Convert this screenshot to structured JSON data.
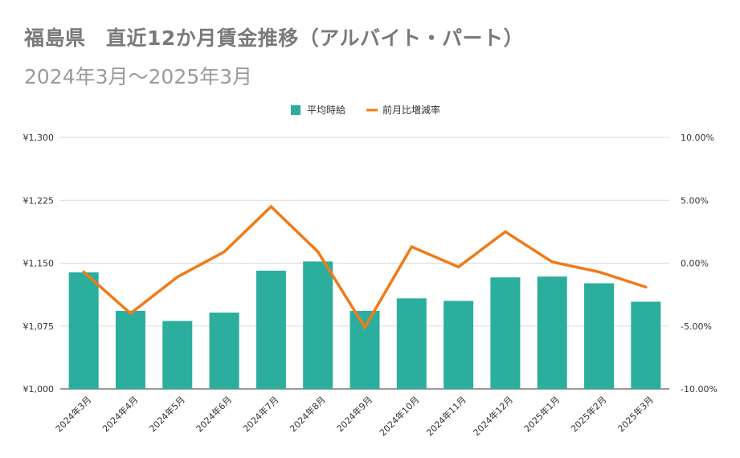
{
  "title": "福島県　直近12か月賃金推移（アルバイト・パート）",
  "subtitle": "2024年3月～2025年3月",
  "chart_data": {
    "type": "bar+line",
    "categories": [
      "2024年3月",
      "2024年4月",
      "2024年5月",
      "2024年6月",
      "2024年7月",
      "2024年8月",
      "2024年9月",
      "2024年10月",
      "2024年11月",
      "2024年12月",
      "2025年1月",
      "2025年2月",
      "2025年3月"
    ],
    "series": [
      {
        "name": "平均時給",
        "type": "bar",
        "axis": "left",
        "color": "#2bae9e",
        "values": [
          1139,
          1093,
          1081,
          1091,
          1141,
          1152,
          1093,
          1108,
          1105,
          1133,
          1134,
          1126,
          1104
        ]
      },
      {
        "name": "前月比増減率",
        "type": "line",
        "axis": "right",
        "color": "#f07b17",
        "values": [
          -0.7,
          -4.0,
          -1.1,
          0.9,
          4.5,
          0.9,
          -5.1,
          1.3,
          -0.3,
          2.5,
          0.1,
          -0.7,
          -1.9
        ]
      }
    ],
    "y_left": {
      "min": 1000,
      "max": 1300,
      "ticks": [
        1000,
        1075,
        1150,
        1225,
        1300
      ],
      "tick_labels": [
        "¥1,000",
        "¥1,075",
        "¥1,150",
        "¥1,225",
        "¥1,300"
      ]
    },
    "y_right": {
      "min": -10,
      "max": 10,
      "ticks": [
        -10,
        -5,
        0,
        5,
        10
      ],
      "tick_labels": [
        "-10.00%",
        "-5.00%",
        "0.00%",
        "5.00%",
        "10.00%"
      ]
    },
    "legend": [
      "平均時給",
      "前月比増減率"
    ],
    "legend_position": "top-center",
    "grid": true
  }
}
